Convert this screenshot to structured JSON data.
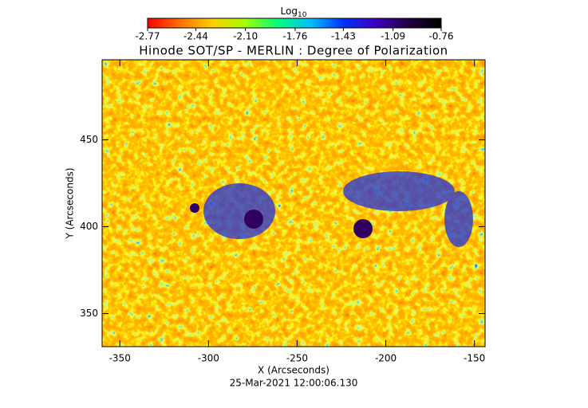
{
  "chart_data": {
    "type": "image",
    "title": "Hinode SOT/SP - MERLIN : Degree of Polarization",
    "xlabel": "X (Arcseconds)",
    "ylabel": "Y (Arcseconds)",
    "date": "25-Mar-2021 12:00:06.130",
    "xlim": [
      -360,
      -144
    ],
    "ylim": [
      331,
      496
    ],
    "xticks": [
      -350,
      -300,
      -250,
      -200,
      -150
    ],
    "yticks": [
      350,
      400,
      450
    ],
    "colorbar": {
      "label": "Log",
      "label_subscript": "10",
      "lim": [
        -2.77,
        -0.76
      ],
      "ticks": [
        -2.77,
        -2.44,
        {
          "value": -2.1,
          "label": "-2.10"
        },
        -1.76,
        -1.43,
        -1.09,
        -0.76
      ],
      "colors": [
        "#ff0000",
        "#ff7000",
        "#ffd000",
        "#a0ff00",
        "#00ff80",
        "#00c0ff",
        "#0030ff",
        "#4000c0",
        "#200040",
        "#000000"
      ]
    }
  }
}
